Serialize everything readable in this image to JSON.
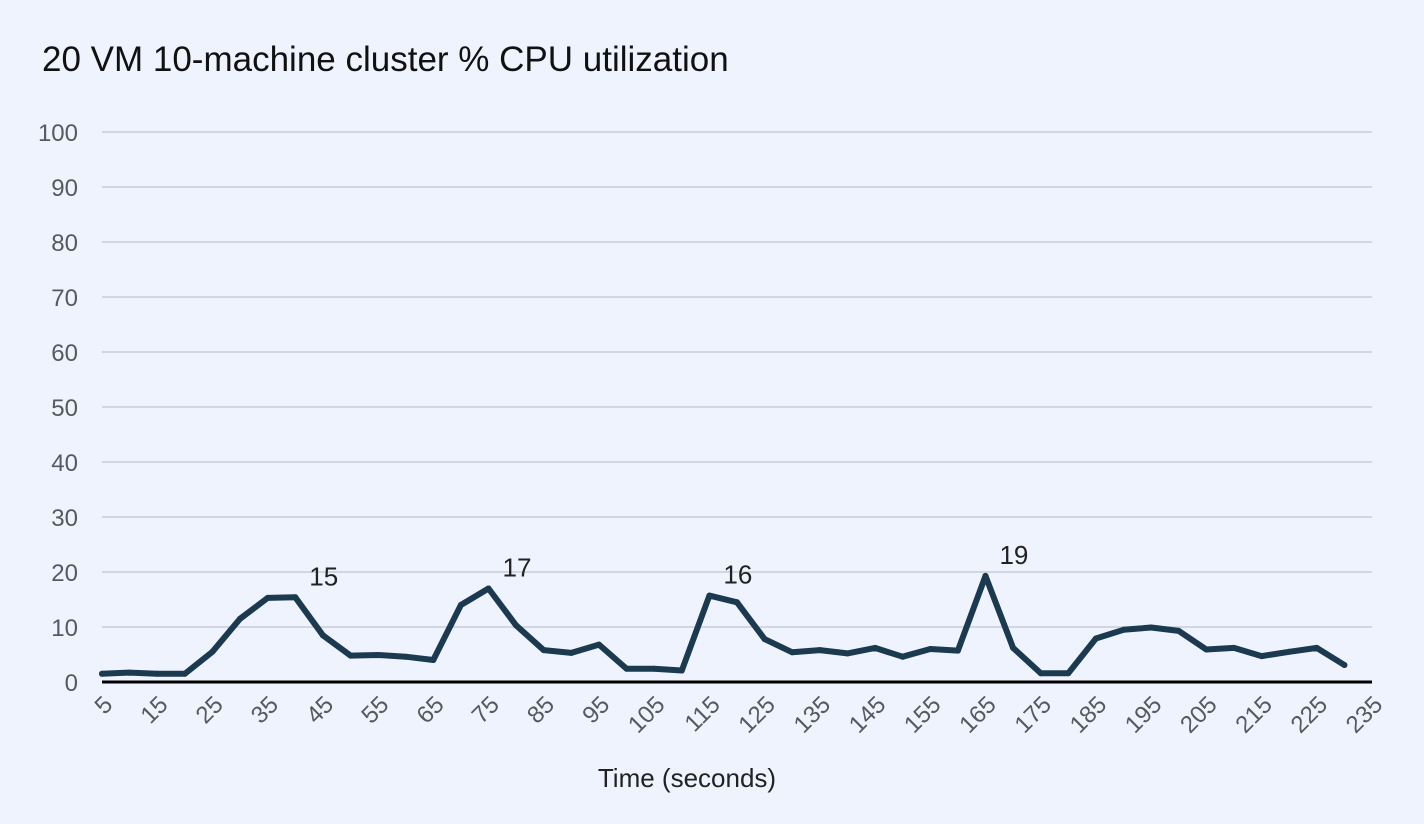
{
  "chart_data": {
    "type": "line",
    "title": "20 VM 10-machine cluster % CPU utilization",
    "xlabel": "Time (seconds)",
    "ylabel": "",
    "ylim": [
      0,
      100
    ],
    "yticks": [
      0,
      10,
      20,
      30,
      40,
      50,
      60,
      70,
      80,
      90,
      100
    ],
    "xlim": [
      5,
      235
    ],
    "xticks": [
      5,
      15,
      25,
      35,
      45,
      55,
      65,
      75,
      85,
      95,
      105,
      115,
      125,
      135,
      145,
      155,
      165,
      175,
      185,
      195,
      205,
      215,
      225,
      235
    ],
    "grid": true,
    "legend": "none",
    "line_color": "#1b3a4f",
    "grid_color": "#c8cdd8",
    "series": [
      {
        "x": [
          5,
          10,
          15,
          20,
          25,
          30,
          35,
          40,
          45,
          50,
          55,
          60,
          65,
          70,
          75,
          80,
          85,
          90,
          95,
          100,
          105,
          110,
          115,
          120,
          125,
          130,
          135,
          140,
          145,
          150,
          155,
          160,
          165,
          170,
          175,
          180,
          185,
          190,
          195,
          200,
          205,
          210,
          215,
          220,
          225,
          230
        ],
        "values": [
          1.5,
          1.7,
          1.5,
          1.5,
          5.5,
          11.5,
          15.3,
          15.4,
          8.5,
          4.8,
          4.9,
          4.6,
          4.0,
          14.0,
          17.0,
          10.3,
          5.8,
          5.3,
          6.8,
          2.4,
          2.4,
          2.1,
          15.7,
          14.5,
          7.8,
          5.4,
          5.8,
          5.2,
          6.2,
          4.6,
          6.0,
          5.7,
          19.3,
          6.2,
          1.6,
          1.6,
          7.9,
          9.5,
          9.9,
          9.3,
          5.9,
          6.2,
          4.7,
          5.5,
          6.2,
          3.1
        ]
      }
    ],
    "annotations": [
      {
        "x": 40,
        "y": 15.4,
        "text": "15"
      },
      {
        "x": 75,
        "y": 17.0,
        "text": "17"
      },
      {
        "x": 115,
        "y": 15.7,
        "text": "16"
      },
      {
        "x": 165,
        "y": 19.3,
        "text": "19"
      }
    ]
  }
}
